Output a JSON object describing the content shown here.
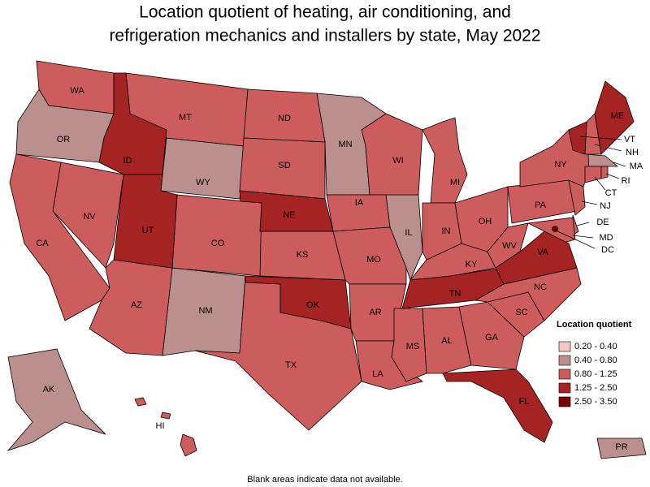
{
  "title": "Location quotient of heating, air conditioning, and refrigeration mechanics and installers by state, May 2022",
  "note": "Blank areas indicate data not available.",
  "legend": {
    "title": "Location quotient",
    "items": [
      {
        "label": "0.20 - 0.40",
        "color": "#f5c6c6",
        "states": []
      },
      {
        "label": "0.40 - 0.80",
        "color": "#bc8f8f",
        "states": [
          "OR",
          "WY",
          "MN",
          "IL",
          "NM",
          "AK",
          "MA",
          "PR"
        ]
      },
      {
        "label": "0.80 - 1.25",
        "color": "#cd5c5c",
        "states": [
          "WA",
          "MT",
          "ND",
          "SD",
          "WI",
          "MI",
          "IA",
          "KS",
          "CO",
          "NV",
          "CA",
          "AZ",
          "TX",
          "MO",
          "AR",
          "LA",
          "MS",
          "AL",
          "GA",
          "SC",
          "NC",
          "KY",
          "IN",
          "OH",
          "WV",
          "PA",
          "NY",
          "NJ",
          "DE",
          "MD",
          "CT",
          "RI",
          "NH",
          "HI"
        ]
      },
      {
        "label": "1.25 - 2.50",
        "color": "#a52323",
        "states": [
          "ID",
          "UT",
          "NE",
          "OK",
          "TN",
          "VA",
          "FL",
          "ME",
          "VT"
        ]
      },
      {
        "label": "2.50 - 3.50",
        "color": "#7d0000",
        "states": [
          "DC"
        ]
      }
    ]
  }
}
